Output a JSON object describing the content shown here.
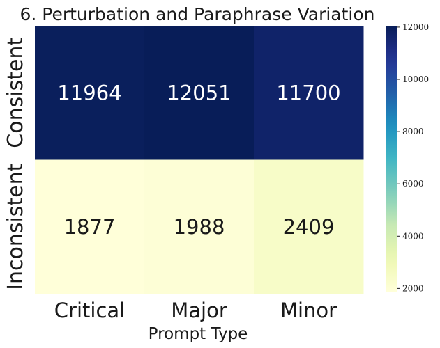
{
  "chart_data": {
    "type": "heatmap",
    "title": "6. Perturbation and Paraphrase Variation",
    "xlabel": "Prompt Type",
    "ylabel": "",
    "x_categories": [
      "Critical",
      "Major",
      "Minor"
    ],
    "y_categories": [
      "Consistent",
      "Inconsistent"
    ],
    "values": [
      [
        11964,
        12051,
        11700
      ],
      [
        1877,
        1988,
        2409
      ]
    ],
    "colormap": "YlGnBu",
    "colorbar": {
      "range": [
        1877,
        12051
      ],
      "ticks": [
        2000,
        4000,
        6000,
        8000,
        10000,
        12000
      ]
    },
    "colors": {
      "light_text": "#ffffff",
      "dark_text": "#1a1a1a"
    }
  }
}
